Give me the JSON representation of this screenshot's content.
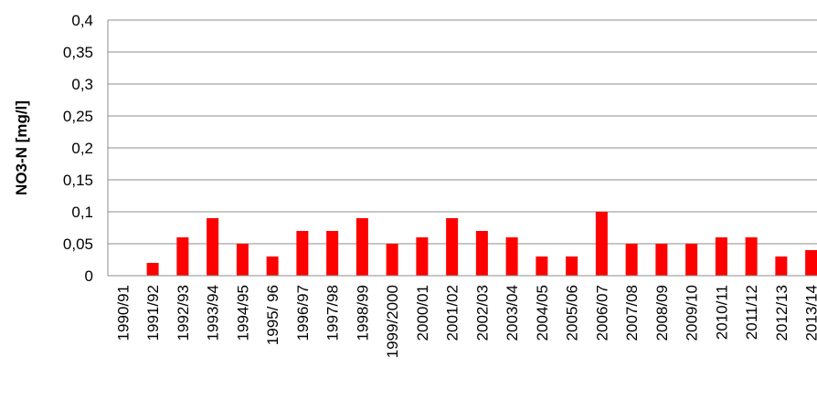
{
  "chart_data": {
    "type": "bar",
    "ylabel": "NO3-N [mg/l]",
    "xlabel": "",
    "title": "",
    "ylim": [
      0,
      0.4
    ],
    "ytick_values": [
      0,
      0.05,
      0.1,
      0.15,
      0.2,
      0.25,
      0.3,
      0.35,
      0.4
    ],
    "ytick_labels": [
      "0",
      "0,05",
      "0,1",
      "0,15",
      "0,2",
      "0,25",
      "0,3",
      "0,35",
      "0,4"
    ],
    "grid": true,
    "legend": "none",
    "bar_color": "#ff0000",
    "categories": [
      "1990/91",
      "1991/92",
      "1992/93",
      "1993/94",
      "1994/95",
      "1995/ 96",
      "1996/97",
      "1997/98",
      "1998/99",
      "1999/2000",
      "2000/01",
      "2001/02",
      "2002/03",
      "2003/04",
      "2004/05",
      "2005/06",
      "2006/07",
      "2007/08",
      "2008/09",
      "2009/10",
      "2010/11",
      "2011/12",
      "2012/13",
      "2013/14"
    ],
    "values": [
      0,
      0.02,
      0.06,
      0.09,
      0.05,
      0.03,
      0.07,
      0.07,
      0.09,
      0.05,
      0.06,
      0.09,
      0.07,
      0.06,
      0.03,
      0.03,
      0.1,
      0.05,
      0.05,
      0.05,
      0.06,
      0.06,
      0.03,
      0.04
    ]
  }
}
